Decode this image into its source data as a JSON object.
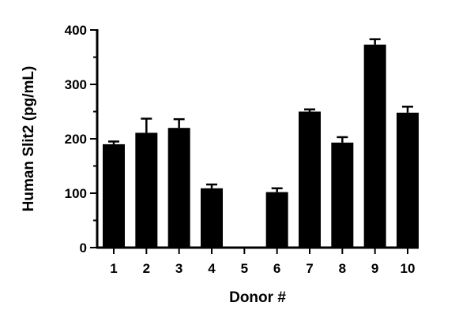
{
  "chart_data": {
    "type": "bar",
    "title": "",
    "xlabel": "Donor #",
    "ylabel": "Human Slit2 (pg/mL)",
    "ylim": [
      0,
      400
    ],
    "yticks": [
      0,
      100,
      200,
      300,
      400
    ],
    "grid": false,
    "legend": "none",
    "bar_color": "#000000",
    "categories": [
      "1",
      "2",
      "3",
      "4",
      "5",
      "6",
      "7",
      "8",
      "9",
      "10"
    ],
    "values": [
      190,
      211,
      220,
      109,
      0,
      102,
      250,
      193,
      373,
      248
    ],
    "error_upper": [
      5,
      26,
      16,
      7,
      0,
      7,
      4,
      10,
      10,
      11
    ]
  }
}
